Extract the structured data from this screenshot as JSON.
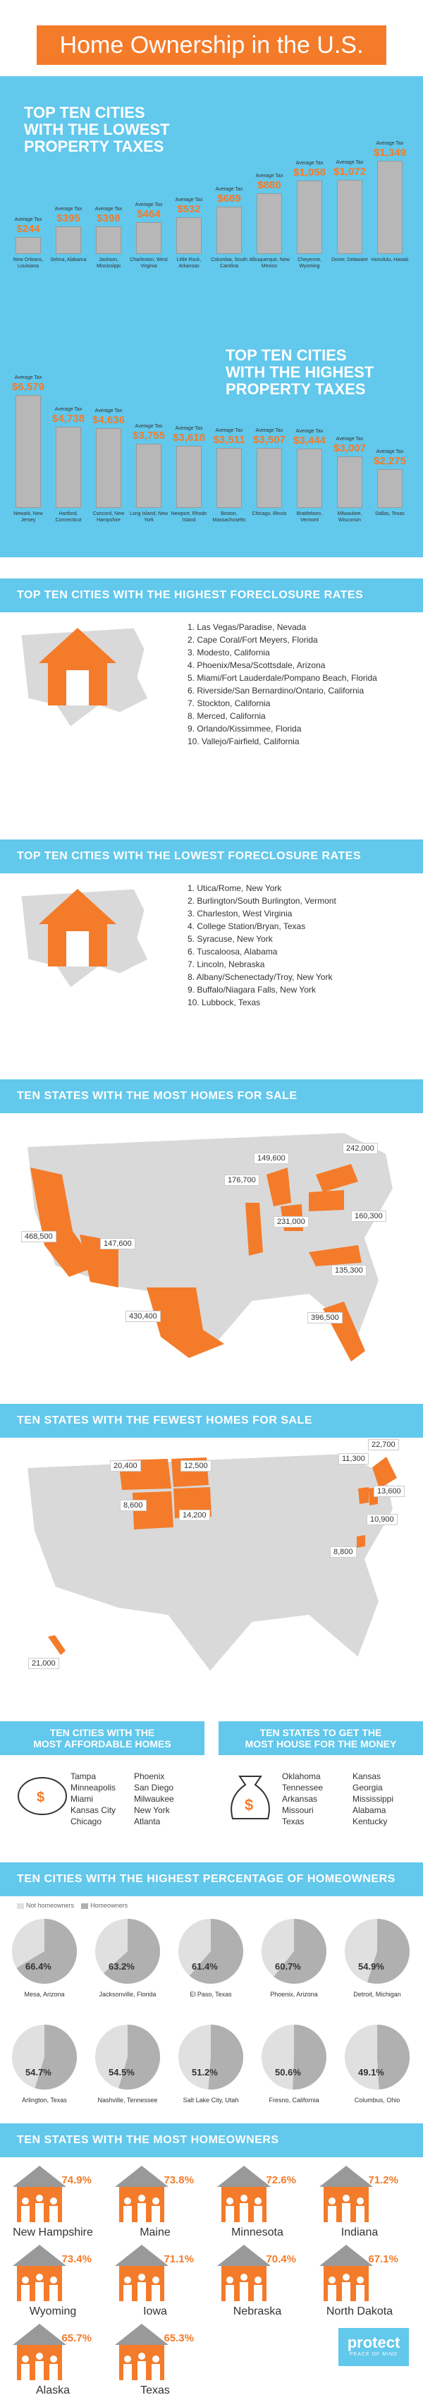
{
  "title": "Home Ownership in the U.S.",
  "low_tax": {
    "title_line1": "TOP TEN CITIES",
    "title_line2": "WITH THE LOWEST",
    "title_line3": "PROPERTY TAXES",
    "avg_label": "Average Tax",
    "items": [
      {
        "city": "New Orleans, Louisiana",
        "value": "$244",
        "amount": 244
      },
      {
        "city": "Selma, Alabama",
        "value": "$395",
        "amount": 395
      },
      {
        "city": "Jackson, Mississippi",
        "value": "$398",
        "amount": 398
      },
      {
        "city": "Charleston, West Virginia",
        "value": "$464",
        "amount": 464
      },
      {
        "city": "Little Rock, Arkansas",
        "value": "$532",
        "amount": 532
      },
      {
        "city": "Columbia, South Carolina",
        "value": "$689",
        "amount": 689
      },
      {
        "city": "Albuquerque, New Mexico",
        "value": "$880",
        "amount": 880
      },
      {
        "city": "Cheyenne, Wyoming",
        "value": "$1,058",
        "amount": 1058
      },
      {
        "city": "Dover, Delaware",
        "value": "$1,072",
        "amount": 1072
      },
      {
        "city": "Honolulu, Hawaii",
        "value": "$1,349",
        "amount": 1349
      }
    ]
  },
  "high_tax": {
    "title_line1": "TOP TEN CITIES",
    "title_line2": "WITH THE HIGHEST",
    "title_line3": "PROPERTY TAXES",
    "avg_label": "Average Tax",
    "items": [
      {
        "city": "Newark, New Jersey",
        "value": "$6,579",
        "amount": 6579
      },
      {
        "city": "Hartford, Connecticut",
        "value": "$4,738",
        "amount": 4738
      },
      {
        "city": "Concord, New Hampshire",
        "value": "$4,636",
        "amount": 4636
      },
      {
        "city": "Long Island, New York",
        "value": "$3,755",
        "amount": 3755
      },
      {
        "city": "Newport, Rhode Island",
        "value": "$3,618",
        "amount": 3618
      },
      {
        "city": "Boston, Massachusetts",
        "value": "$3,511",
        "amount": 3511
      },
      {
        "city": "Chicago, Illinois",
        "value": "$3,507",
        "amount": 3507
      },
      {
        "city": "Brattleboro, Vermont",
        "value": "$3,444",
        "amount": 3444
      },
      {
        "city": "Milwaukee, Wisconsin",
        "value": "$3,007",
        "amount": 3007
      },
      {
        "city": "Dallas, Texas",
        "value": "$2,275",
        "amount": 2275
      }
    ]
  },
  "high_foreclosure": {
    "title": "TOP TEN CITIES WITH THE HIGHEST FORECLOSURE RATES",
    "items": [
      "1. Las Vegas/Paradise, Nevada",
      "2. Cape Coral/Fort Meyers, Florida",
      "3. Modesto, California",
      "4. Phoenix/Mesa/Scottsdale, Arizona",
      "5. Miami/Fort Lauderdale/Pompano Beach, Florida",
      "6. Riverside/San Bernardino/Ontario, California",
      "7. Stockton, California",
      "8. Merced, California",
      "9. Orlando/Kissimmee, Florida",
      "10. Vallejo/Fairfield, California"
    ]
  },
  "low_foreclosure": {
    "title": "TOP TEN CITIES WITH THE LOWEST FORECLOSURE RATES",
    "items": [
      "1. Utica/Rome, New York",
      "2. Burlington/South Burlington, Vermont",
      "3. Charleston, West Virginia",
      "4. College Station/Bryan, Texas",
      "5. Syracuse, New York",
      "6. Tuscaloosa, Alabama",
      "7. Lincoln, Nebraska",
      "8. Albany/Schenectady/Troy, New York",
      "9. Buffalo/Niagara Falls, New York",
      "10. Lubbock, Texas"
    ]
  },
  "most_homes": {
    "title": "TEN STATES WITH THE MOST HOMES FOR SALE",
    "labels": [
      {
        "state": "CA",
        "value": "468,500"
      },
      {
        "state": "AZ",
        "value": "147,600"
      },
      {
        "state": "TX",
        "value": "430,400"
      },
      {
        "state": "IL",
        "value": "176,700"
      },
      {
        "state": "MI",
        "value": "149,600"
      },
      {
        "state": "OH",
        "value": "231,000"
      },
      {
        "state": "NY",
        "value": "242,000"
      },
      {
        "state": "PA",
        "value": "160,300"
      },
      {
        "state": "NC",
        "value": "135,300"
      },
      {
        "state": "FL",
        "value": "396,500"
      }
    ]
  },
  "fewest_homes": {
    "title": "TEN STATES WITH THE FEWEST HOMES FOR SALE",
    "labels": [
      {
        "state": "MT",
        "value": "20,400"
      },
      {
        "state": "ND",
        "value": "12,500"
      },
      {
        "state": "WY",
        "value": "8,600"
      },
      {
        "state": "SD",
        "value": "14,200"
      },
      {
        "state": "VT",
        "value": "11,300"
      },
      {
        "state": "ME",
        "value": "22,700"
      },
      {
        "state": "NH",
        "value": "13,600"
      },
      {
        "state": "RI",
        "value": "10,900"
      },
      {
        "state": "DE",
        "value": ""
      },
      {
        "state": "DC",
        "value": "8,800"
      },
      {
        "state": "HI",
        "value": "21,000"
      }
    ]
  },
  "affordable": {
    "title_line1": "TEN CITIES WITH THE",
    "title_line2": "MOST AFFORDABLE HOMES",
    "col1": [
      "Tampa",
      "Minneapolis",
      "Miami",
      "Kansas City",
      "Chicago"
    ],
    "col2": [
      "Phoenix",
      "San Diego",
      "Milwaukee",
      "New York",
      "Atlanta"
    ]
  },
  "most_house": {
    "title_line1": "TEN STATES TO GET THE",
    "title_line2": "MOST HOUSE FOR THE MONEY",
    "col1": [
      "Oklahoma",
      "Tennessee",
      "Arkansas",
      "Missouri",
      "Texas"
    ],
    "col2": [
      "Kansas",
      "Georgia",
      "Mississippi",
      "Alabama",
      "Kentucky"
    ]
  },
  "homeowner_pct": {
    "title": "TEN CITIES WITH THE HIGHEST PERCENTAGE OF HOMEOWNERS",
    "legend_not": "Not homeowners",
    "legend_yes": "Homeowners",
    "items": [
      {
        "city": "Mesa, Arizona",
        "pct": "66.4%",
        "value": 66.4
      },
      {
        "city": "Jacksonville, Florida",
        "pct": "63.2%",
        "value": 63.2
      },
      {
        "city": "El Paso, Texas",
        "pct": "61.4%",
        "value": 61.4
      },
      {
        "city": "Phoenix, Arizona",
        "pct": "60.7%",
        "value": 60.7
      },
      {
        "city": "Detroit, Michigan",
        "pct": "54.9%",
        "value": 54.9
      },
      {
        "city": "Arlington, Texas",
        "pct": "54.7%",
        "value": 54.7
      },
      {
        "city": "Nashville, Tennessee",
        "pct": "54.5%",
        "value": 54.5
      },
      {
        "city": "Salt Lake City, Utah",
        "pct": "51.2%",
        "value": 51.2
      },
      {
        "city": "Fresno, California",
        "pct": "50.6%",
        "value": 50.6
      },
      {
        "city": "Columbus, Ohio",
        "pct": "49.1%",
        "value": 49.1
      }
    ]
  },
  "most_homeowners": {
    "title": "TEN STATES WITH THE MOST HOMEOWNERS",
    "items": [
      {
        "state": "New Hampshire",
        "pct": "74.9%"
      },
      {
        "state": "Maine",
        "pct": "73.8%"
      },
      {
        "state": "Minnesota",
        "pct": "72.6%"
      },
      {
        "state": "Indiana",
        "pct": "71.2%"
      },
      {
        "state": "Wyoming",
        "pct": "73.4%"
      },
      {
        "state": "Iowa",
        "pct": "71.1%"
      },
      {
        "state": "Nebraska",
        "pct": "70.4%"
      },
      {
        "state": "North Dakota",
        "pct": "67.1%"
      },
      {
        "state": "Alaska",
        "pct": "65.7%"
      },
      {
        "state": "Texas",
        "pct": "65.3%"
      }
    ]
  },
  "logo": {
    "name": "protect",
    "tagline": "PEACE OF MIND"
  },
  "colors": {
    "orange": "#f47b2a",
    "blue": "#62c8ec",
    "gray": "#b7b7b7",
    "dark_gray": "#999999"
  }
}
